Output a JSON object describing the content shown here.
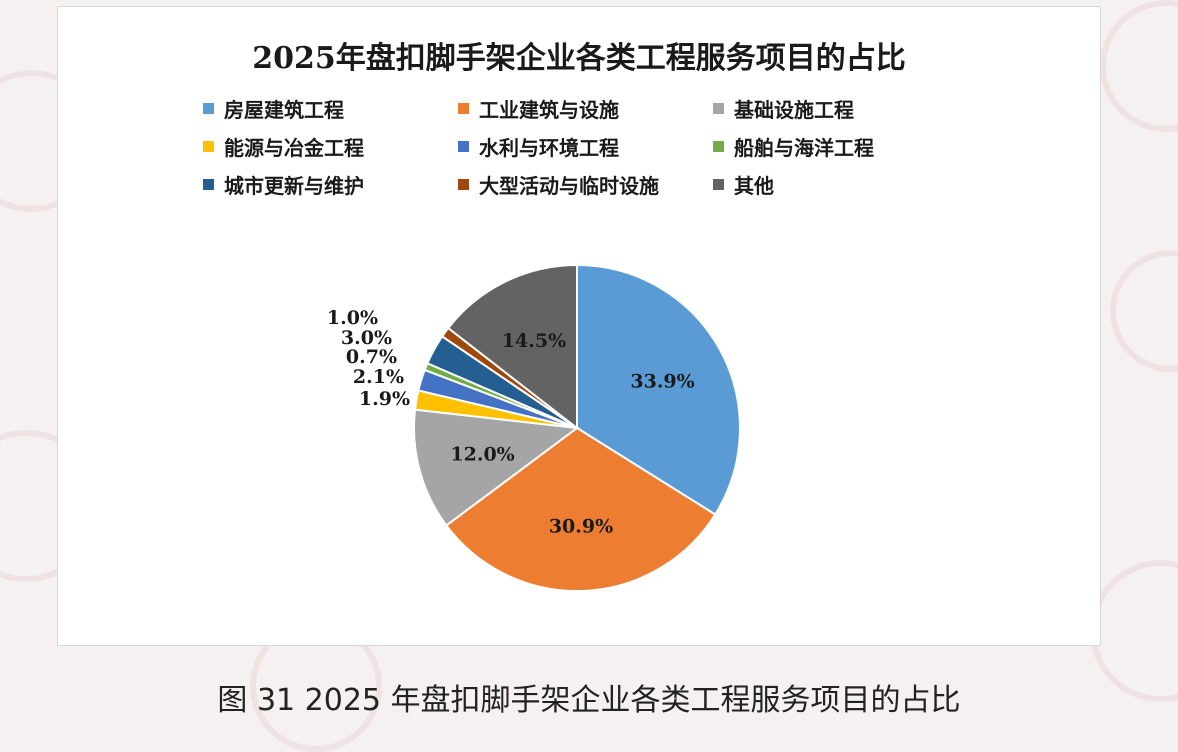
{
  "caption": "图 31 2025 年盘扣脚手架企业各类工程服务项目的占比",
  "chart_data": {
    "type": "pie",
    "title": "2025年盘扣脚手架企业各类工程服务项目的占比",
    "legend_position": "top",
    "slices": [
      {
        "name": "房屋建筑工程",
        "value": 33.9,
        "label": "33.9%",
        "color": "#5b9bd5"
      },
      {
        "name": "工业建筑与设施",
        "value": 30.9,
        "label": "30.9%",
        "color": "#ed7d31"
      },
      {
        "name": "基础设施工程",
        "value": 12.0,
        "label": "12.0%",
        "color": "#a5a5a5"
      },
      {
        "name": "能源与冶金工程",
        "value": 1.9,
        "label": "1.9%",
        "color": "#ffc000"
      },
      {
        "name": "水利与环境工程",
        "value": 2.1,
        "label": "2.1%",
        "color": "#4472c4"
      },
      {
        "name": "船舶与海洋工程",
        "value": 0.7,
        "label": "0.7%",
        "color": "#70ad47"
      },
      {
        "name": "城市更新与维护",
        "value": 3.0,
        "label": "3.0%",
        "color": "#255e91"
      },
      {
        "name": "大型活动与临时设施",
        "value": 1.0,
        "label": "1.0%",
        "color": "#9e480e"
      },
      {
        "name": "其他",
        "value": 14.5,
        "label": "14.5%",
        "color": "#636363"
      }
    ]
  }
}
